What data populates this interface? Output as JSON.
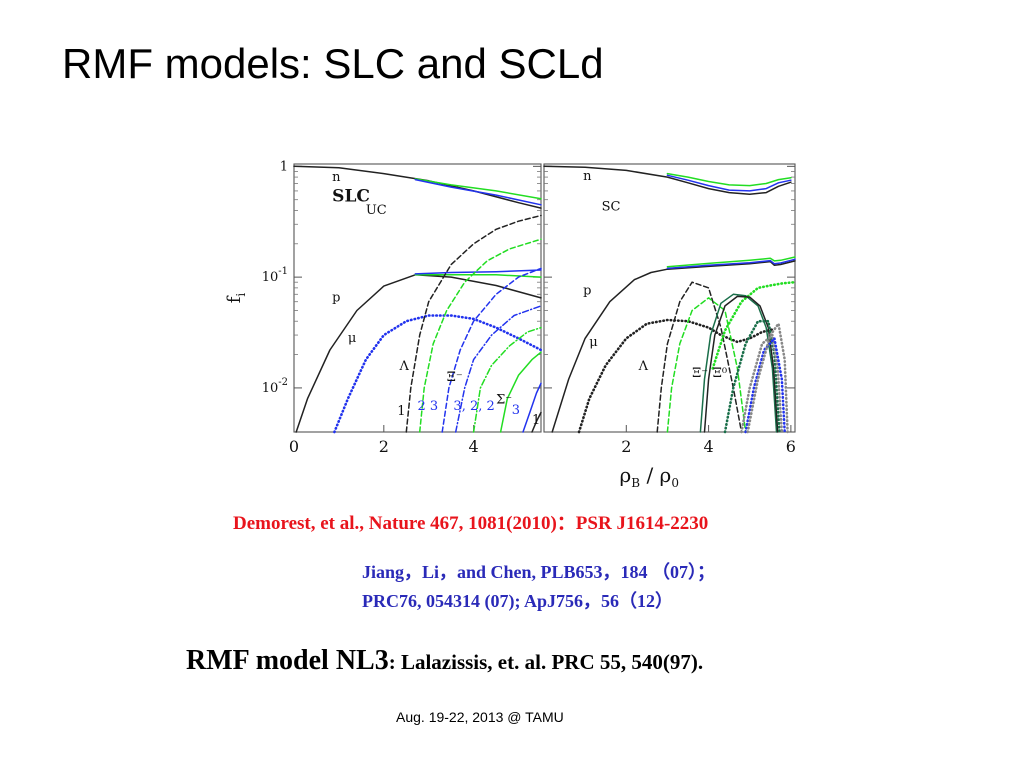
{
  "slide": {
    "title": "RMF models: SLC and SCLd",
    "citation_red": "Demorest, et al., Nature 467, 1081(2010)：PSR J1614-2230",
    "citation_blue_1": "Jiang，Li，and Chen, PLB653，184 （07）；",
    "citation_blue_2": "PRC76, 054314 (07); ApJ756，56（12）",
    "rmf_model_label": "RMF model NL3",
    "rmf_model_ref": ": Lalazissis, et. al. PRC 55, 540(97).",
    "footer": "Aug. 19-22, 2013 @ TAMU"
  },
  "colors": {
    "title": "#000000",
    "citation_red": "#e8141c",
    "citation_blue": "#2a2ab8",
    "black_curve": "#222222",
    "green_curve": "#22dd22",
    "blue_curve": "#2233ee",
    "gray_curve": "#888888",
    "teal_curve": "#1a6f4a"
  },
  "chart_data": [
    {
      "type": "line",
      "panel": "left",
      "yscale": "log",
      "ylabel": "f_i",
      "y_tick_labels": [
        "1",
        "10^-1",
        "10^-2"
      ],
      "x_tick_labels": [
        "0",
        "2",
        "4"
      ],
      "xlim": [
        0,
        5.5
      ],
      "ylim": [
        0.004,
        1.05
      ],
      "labels": [
        {
          "text": "n",
          "x": 0.85,
          "y": 0.74
        },
        {
          "text": "SLC",
          "x": 0.85,
          "y": 0.48,
          "bold": true
        },
        {
          "text": "UC",
          "x": 1.6,
          "y": 0.37
        },
        {
          "text": "p",
          "x": 0.85,
          "y": 0.06
        },
        {
          "text": "μ",
          "x": 1.2,
          "y": 0.026
        },
        {
          "text": "Λ",
          "x": 2.35,
          "y": 0.0145
        },
        {
          "text": "Ξ⁻",
          "x": 3.4,
          "y": 0.0115
        },
        {
          "text": "Σ⁻",
          "x": 4.5,
          "y": 0.0072
        },
        {
          "text": "1",
          "x": 2.3,
          "y": 0.0057
        },
        {
          "text": "2 3",
          "x": 2.75,
          "y": 0.0063,
          "color": "blue"
        },
        {
          "text": "3, 2, 2",
          "x": 3.55,
          "y": 0.0063,
          "color": "blue"
        },
        {
          "text": "3",
          "x": 4.85,
          "y": 0.0058,
          "color": "blue"
        },
        {
          "text": "1",
          "x": 5.3,
          "y": 0.0047
        }
      ],
      "series": [
        {
          "color": "black",
          "style": "solid",
          "x": [
            0,
            1.0,
            2.0,
            3.0,
            4.0,
            5.0,
            5.5
          ],
          "y": [
            1.0,
            0.97,
            0.86,
            0.74,
            0.6,
            0.47,
            0.42
          ]
        },
        {
          "color": "green",
          "style": "solid",
          "x": [
            2.7,
            3.5,
            4.5,
            5.5
          ],
          "y": [
            0.77,
            0.68,
            0.6,
            0.51
          ]
        },
        {
          "color": "blue",
          "style": "solid",
          "x": [
            2.7,
            3.5,
            4.5,
            5.5
          ],
          "y": [
            0.76,
            0.65,
            0.55,
            0.45
          ]
        },
        {
          "color": "black",
          "style": "solid",
          "x": [
            0.05,
            0.3,
            0.8,
            1.4,
            2.0,
            2.7,
            3.5,
            4.5,
            5.5
          ],
          "y": [
            0.004,
            0.008,
            0.022,
            0.05,
            0.083,
            0.105,
            0.1,
            0.084,
            0.065
          ]
        },
        {
          "color": "green",
          "style": "solid",
          "x": [
            2.7,
            3.5,
            4.5,
            5.5
          ],
          "y": [
            0.105,
            0.105,
            0.105,
            0.1
          ]
        },
        {
          "color": "blue",
          "style": "solid",
          "x": [
            2.7,
            3.5,
            4.5,
            5.5
          ],
          "y": [
            0.107,
            0.11,
            0.112,
            0.116
          ]
        },
        {
          "color": "blue",
          "style": "dotted",
          "x": [
            0.9,
            1.2,
            1.6,
            2.0,
            2.5,
            3.0,
            3.5,
            4.0,
            4.5,
            5.0,
            5.5
          ],
          "y": [
            0.004,
            0.008,
            0.018,
            0.03,
            0.04,
            0.045,
            0.045,
            0.042,
            0.035,
            0.028,
            0.022
          ]
        },
        {
          "color": "black",
          "style": "dashed",
          "x": [
            2.5,
            2.6,
            2.8,
            3.0,
            3.5,
            4.0,
            4.5,
            5.0,
            5.5
          ],
          "y": [
            0.004,
            0.01,
            0.03,
            0.06,
            0.13,
            0.2,
            0.27,
            0.32,
            0.36
          ]
        },
        {
          "color": "green",
          "style": "dashed",
          "x": [
            2.8,
            2.9,
            3.1,
            3.4,
            3.8,
            4.3,
            4.8,
            5.5
          ],
          "y": [
            0.004,
            0.01,
            0.025,
            0.05,
            0.09,
            0.14,
            0.18,
            0.22
          ]
        },
        {
          "color": "blue",
          "style": "dashed",
          "x": [
            3.3,
            3.45,
            3.7,
            4.0,
            4.5,
            5.0,
            5.5
          ],
          "y": [
            0.004,
            0.01,
            0.022,
            0.04,
            0.07,
            0.1,
            0.12
          ]
        },
        {
          "color": "blue",
          "style": "dashdot",
          "x": [
            3.6,
            3.8,
            4.0,
            4.4,
            4.9,
            5.5
          ],
          "y": [
            0.004,
            0.01,
            0.018,
            0.03,
            0.045,
            0.055
          ]
        },
        {
          "color": "green",
          "style": "dashdot",
          "x": [
            4.0,
            4.15,
            4.4,
            4.8,
            5.2,
            5.5
          ],
          "y": [
            0.004,
            0.01,
            0.016,
            0.024,
            0.032,
            0.035
          ]
        },
        {
          "color": "green",
          "style": "solid",
          "x": [
            4.6,
            4.75,
            5.0,
            5.3,
            5.5
          ],
          "y": [
            0.004,
            0.008,
            0.013,
            0.018,
            0.021
          ]
        },
        {
          "color": "blue",
          "style": "solid",
          "x": [
            5.1,
            5.25,
            5.4,
            5.5
          ],
          "y": [
            0.004,
            0.006,
            0.009,
            0.011
          ]
        },
        {
          "color": "black",
          "style": "solid",
          "x": [
            5.3,
            5.4,
            5.5
          ],
          "y": [
            0.004,
            0.005,
            0.006
          ]
        }
      ]
    },
    {
      "type": "line",
      "panel": "right",
      "yscale": "log",
      "xlabel": "ρ_B / ρ_0",
      "x_tick_labels": [
        "2",
        "4",
        "6"
      ],
      "xlim": [
        0,
        6.1
      ],
      "ylim": [
        0.004,
        1.05
      ],
      "labels": [
        {
          "text": "n",
          "x": 0.95,
          "y": 0.75
        },
        {
          "text": "SC",
          "x": 1.4,
          "y": 0.4
        },
        {
          "text": "p",
          "x": 0.95,
          "y": 0.07
        },
        {
          "text": "μ",
          "x": 1.1,
          "y": 0.024
        },
        {
          "text": "Λ",
          "x": 2.3,
          "y": 0.0145
        },
        {
          "text": "Ξ⁻",
          "x": 3.6,
          "y": 0.0125
        },
        {
          "text": "Ξ⁰",
          "x": 4.1,
          "y": 0.0125
        }
      ],
      "series": [
        {
          "color": "black",
          "style": "solid",
          "x": [
            0,
            1.0,
            2.0,
            3.0,
            3.5,
            4.0,
            4.5,
            5.0,
            5.4,
            5.7,
            6.0
          ],
          "y": [
            1.0,
            0.98,
            0.92,
            0.8,
            0.71,
            0.63,
            0.58,
            0.56,
            0.58,
            0.66,
            0.72
          ]
        },
        {
          "color": "blue",
          "style": "solid",
          "x": [
            3.0,
            3.5,
            4.0,
            4.5,
            5.0,
            5.4,
            5.7,
            6.0
          ],
          "y": [
            0.83,
            0.75,
            0.67,
            0.61,
            0.6,
            0.63,
            0.71,
            0.75
          ]
        },
        {
          "color": "green",
          "style": "solid",
          "x": [
            3.0,
            3.5,
            4.0,
            4.5,
            5.0,
            5.4,
            5.7,
            6.0
          ],
          "y": [
            0.86,
            0.8,
            0.73,
            0.68,
            0.67,
            0.7,
            0.76,
            0.79
          ]
        },
        {
          "color": "black",
          "style": "solid",
          "x": [
            0.2,
            0.6,
            1.0,
            1.6,
            2.2,
            2.6,
            3.0,
            4.0,
            5.0,
            5.5,
            5.6,
            5.75,
            6.1
          ],
          "y": [
            0.004,
            0.012,
            0.028,
            0.06,
            0.095,
            0.11,
            0.118,
            0.125,
            0.132,
            0.138,
            0.128,
            0.13,
            0.14
          ]
        },
        {
          "color": "blue",
          "style": "solid",
          "x": [
            3.0,
            4.0,
            5.0,
            5.5,
            5.6,
            5.75,
            6.1
          ],
          "y": [
            0.12,
            0.128,
            0.135,
            0.141,
            0.132,
            0.134,
            0.145
          ]
        },
        {
          "color": "green",
          "style": "solid",
          "x": [
            3.0,
            4.0,
            5.0,
            5.5,
            5.6,
            5.75,
            6.1
          ],
          "y": [
            0.124,
            0.133,
            0.142,
            0.148,
            0.14,
            0.142,
            0.152
          ]
        },
        {
          "color": "black",
          "style": "dotted",
          "x": [
            0.85,
            1.1,
            1.5,
            2.0,
            2.5,
            3.0,
            3.5,
            4.0,
            4.3,
            4.7,
            5.0,
            5.3,
            5.6
          ],
          "y": [
            0.004,
            0.008,
            0.016,
            0.028,
            0.038,
            0.041,
            0.04,
            0.035,
            0.03,
            0.026,
            0.028,
            0.032,
            0.034
          ]
        },
        {
          "color": "black",
          "style": "dashed",
          "x": [
            2.75,
            2.85,
            3.0,
            3.3,
            3.6,
            4.0,
            4.3,
            4.6,
            4.8
          ],
          "y": [
            0.004,
            0.01,
            0.025,
            0.06,
            0.09,
            0.08,
            0.035,
            0.01,
            0.004
          ]
        },
        {
          "color": "green",
          "style": "dashed",
          "x": [
            3.0,
            3.1,
            3.3,
            3.6,
            4.0,
            4.4,
            4.7,
            4.9
          ],
          "y": [
            0.004,
            0.01,
            0.025,
            0.05,
            0.065,
            0.05,
            0.015,
            0.004
          ]
        },
        {
          "color": "green",
          "style": "dotted",
          "x": [
            4.1,
            4.4,
            4.8,
            5.2,
            5.5,
            5.8,
            6.1
          ],
          "y": [
            0.015,
            0.033,
            0.06,
            0.08,
            0.084,
            0.088,
            0.09
          ]
        },
        {
          "color": "teal",
          "style": "solid",
          "x": [
            3.8,
            3.9,
            4.05,
            4.3,
            4.6,
            4.9,
            5.2,
            5.4,
            5.55,
            5.65
          ],
          "y": [
            0.004,
            0.012,
            0.03,
            0.058,
            0.07,
            0.068,
            0.055,
            0.035,
            0.015,
            0.004
          ]
        },
        {
          "color": "black",
          "style": "solid",
          "x": [
            3.9,
            4.0,
            4.15,
            4.4,
            4.7,
            5.0,
            5.25,
            5.45,
            5.58,
            5.68
          ],
          "y": [
            0.004,
            0.012,
            0.03,
            0.055,
            0.067,
            0.066,
            0.055,
            0.035,
            0.015,
            0.004
          ]
        },
        {
          "color": "teal",
          "style": "dotted",
          "x": [
            4.4,
            4.6,
            4.9,
            5.2,
            5.45,
            5.6,
            5.72
          ],
          "y": [
            0.004,
            0.01,
            0.025,
            0.04,
            0.04,
            0.02,
            0.004
          ]
        },
        {
          "color": "gray",
          "style": "dotted",
          "x": [
            4.8,
            5.0,
            5.3,
            5.55,
            5.68,
            5.78
          ],
          "y": [
            0.004,
            0.01,
            0.025,
            0.03,
            0.015,
            0.004
          ]
        },
        {
          "color": "blue",
          "style": "dotted",
          "x": [
            4.9,
            5.1,
            5.35,
            5.6,
            5.78,
            5.85
          ],
          "y": [
            0.004,
            0.01,
            0.022,
            0.028,
            0.012,
            0.004
          ]
        },
        {
          "color": "gray",
          "style": "dotted",
          "x": [
            4.95,
            5.2,
            5.5,
            5.7,
            5.85,
            5.92
          ],
          "y": [
            0.004,
            0.012,
            0.03,
            0.038,
            0.018,
            0.004
          ]
        }
      ]
    }
  ]
}
